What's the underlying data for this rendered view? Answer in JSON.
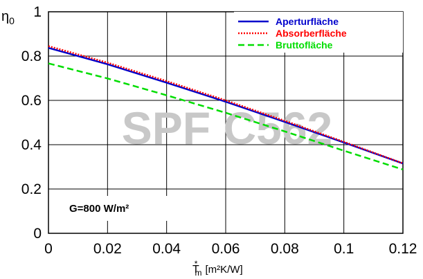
{
  "chart_data": {
    "type": "line",
    "title": "",
    "ylabel": "η0",
    "xlabel": "T*m [m²K/W]",
    "xlim": [
      0,
      0.12
    ],
    "ylim": [
      0,
      1
    ],
    "x_ticks": [
      "0",
      "0.02",
      "0.04",
      "0.06",
      "0.08",
      "0.1",
      "0.12"
    ],
    "y_ticks": [
      "0",
      "0.2",
      "0.4",
      "0.6",
      "0.8",
      "1"
    ],
    "grid": true,
    "legend_position": "top-right",
    "watermark": "SPF C562",
    "annotation": "G=800 W/m²",
    "series": [
      {
        "name": "Aperturfläche",
        "color": "#0000cc",
        "style": "solid",
        "x": [
          0,
          0.02,
          0.04,
          0.06,
          0.08,
          0.1,
          0.12
        ],
        "y": [
          0.837,
          0.763,
          0.68,
          0.594,
          0.503,
          0.41,
          0.315
        ]
      },
      {
        "name": "Absorberfläche",
        "color": "#ff0000",
        "style": "dotted",
        "x": [
          0,
          0.02,
          0.04,
          0.06,
          0.08,
          0.1,
          0.12
        ],
        "y": [
          0.845,
          0.77,
          0.687,
          0.6,
          0.508,
          0.413,
          0.316
        ]
      },
      {
        "name": "Bruttofläche",
        "color": "#00dd00",
        "style": "dashed",
        "x": [
          0,
          0.02,
          0.04,
          0.06,
          0.08,
          0.1,
          0.12
        ],
        "y": [
          0.767,
          0.699,
          0.623,
          0.544,
          0.46,
          0.373,
          0.288
        ]
      }
    ]
  }
}
